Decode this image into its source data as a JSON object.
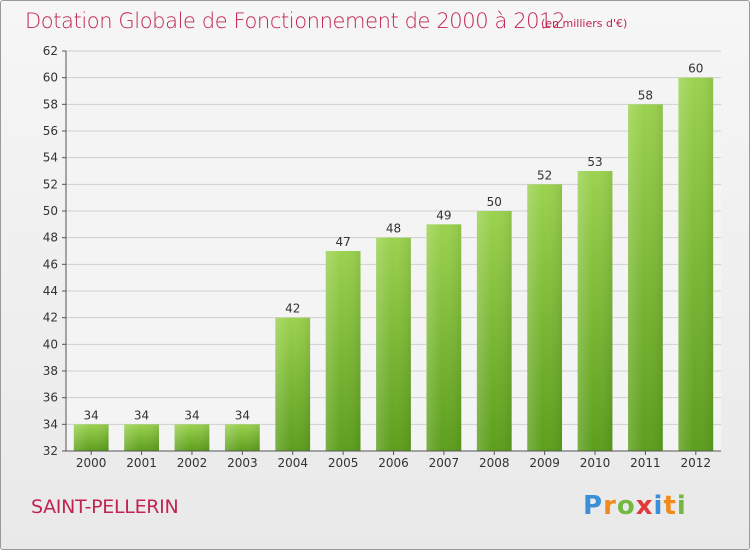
{
  "header": {
    "title": "Dotation Globale de Fonctionnement de 2000 à 2012",
    "unit": "(en milliers d'€)"
  },
  "footer": {
    "commune": "SAINT-PELLERIN"
  },
  "logo": {
    "text": "Proxiti",
    "letters": [
      {
        "char": "P",
        "color": "#3a8fd6"
      },
      {
        "char": "r",
        "color": "#f08a1c"
      },
      {
        "char": "o",
        "color": "#74b842"
      },
      {
        "char": "x",
        "color": "#e23a3a"
      },
      {
        "char": "i",
        "color": "#3a8fd6"
      },
      {
        "char": "t",
        "color": "#f08a1c"
      },
      {
        "char": "i",
        "color": "#74b842"
      }
    ]
  },
  "chart_data": {
    "type": "bar",
    "categories": [
      "2000",
      "2001",
      "2002",
      "2003",
      "2004",
      "2005",
      "2006",
      "2007",
      "2008",
      "2009",
      "2010",
      "2011",
      "2012"
    ],
    "values": [
      34,
      34,
      34,
      34,
      42,
      47,
      48,
      49,
      50,
      52,
      53,
      58,
      60
    ],
    "ylim": [
      32,
      62
    ],
    "yticks": [
      32,
      34,
      36,
      38,
      40,
      42,
      44,
      46,
      48,
      50,
      52,
      54,
      56,
      58,
      60,
      62
    ],
    "grid": true,
    "bar_color": "#7dbb35",
    "title": "Dotation Globale de Fonctionnement de 2000 à 2012",
    "subtitle": "(en milliers d'€)"
  }
}
